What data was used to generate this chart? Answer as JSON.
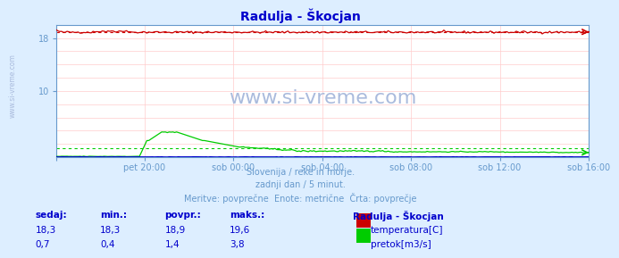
{
  "title": "Radulja - Škocjan",
  "title_color": "#0000cc",
  "bg_color": "#ddeeff",
  "plot_bg_color": "#ffffff",
  "xlabel_ticks": [
    "pet 20:00",
    "sob 00:00",
    "sob 04:00",
    "sob 08:00",
    "sob 12:00",
    "sob 16:00"
  ],
  "tick_color": "#6699cc",
  "axis_color": "#6699cc",
  "grid_color_h": "#ffcccc",
  "grid_color_v": "#ffcccc",
  "temp_color": "#cc0000",
  "flow_color": "#00cc00",
  "level_color": "#0000cc",
  "ylim": [
    0,
    20
  ],
  "ytick_vals": [
    10,
    18
  ],
  "temp_avg": 18.9,
  "flow_avg": 1.4,
  "subtitle1": "Slovenija / reke in morje.",
  "subtitle2": "zadnji dan / 5 minut.",
  "subtitle3": "Meritve: povprečne  Enote: metrične  Črta: povprečje",
  "subtitle_color": "#6699cc",
  "legend_title": "Radulja - Škocjan",
  "legend_temp": "temperatura[C]",
  "legend_flow": "pretok[m3/s]",
  "table_headers": [
    "sedaj:",
    "min.:",
    "povpr.:",
    "maks.:"
  ],
  "table_temp": [
    "18,3",
    "18,3",
    "18,9",
    "19,6"
  ],
  "table_flow": [
    "0,7",
    "0,4",
    "1,4",
    "3,8"
  ],
  "table_color": "#0000cc",
  "watermark": "www.si-vreme.com",
  "watermark_color": "#aabbdd",
  "side_label": "www.si-vreme.com",
  "n_points": 288
}
